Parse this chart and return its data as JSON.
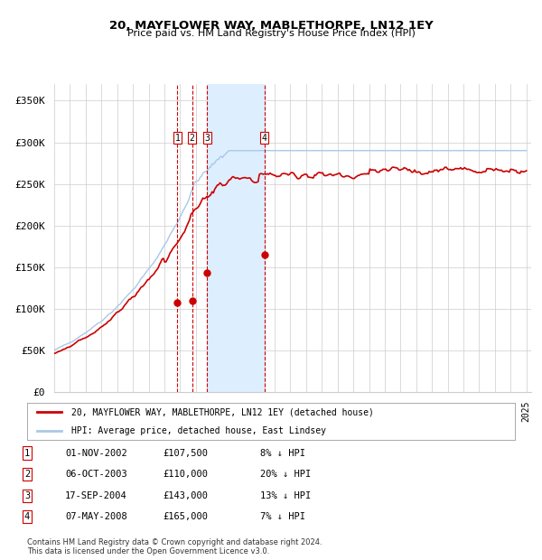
{
  "title": "20, MAYFLOWER WAY, MABLETHORPE, LN12 1EY",
  "subtitle": "Price paid vs. HM Land Registry's House Price Index (HPI)",
  "ylabel_ticks": [
    "£0",
    "£50K",
    "£100K",
    "£150K",
    "£200K",
    "£250K",
    "£300K",
    "£350K"
  ],
  "ytick_values": [
    0,
    50000,
    100000,
    150000,
    200000,
    250000,
    300000,
    350000
  ],
  "ylim": [
    0,
    370000
  ],
  "xlim_start": 1995.0,
  "xlim_end": 2025.3,
  "transactions": [
    {
      "num": 1,
      "date": "01-NOV-2002",
      "price": 107500,
      "year": 2002.83,
      "pct": "8%",
      "direction": "↓"
    },
    {
      "num": 2,
      "date": "06-OCT-2003",
      "price": 110000,
      "year": 2003.76,
      "pct": "20%",
      "direction": "↓"
    },
    {
      "num": 3,
      "date": "17-SEP-2004",
      "price": 143000,
      "year": 2004.71,
      "pct": "13%",
      "direction": "↓"
    },
    {
      "num": 4,
      "date": "07-MAY-2008",
      "price": 165000,
      "year": 2008.35,
      "pct": "7%",
      "direction": "↓"
    }
  ],
  "shaded_region": [
    2004.71,
    2008.35
  ],
  "legend_house": "20, MAYFLOWER WAY, MABLETHORPE, LN12 1EY (detached house)",
  "legend_hpi": "HPI: Average price, detached house, East Lindsey",
  "footnote": "Contains HM Land Registry data © Crown copyright and database right 2024.\nThis data is licensed under the Open Government Licence v3.0.",
  "house_color": "#cc0000",
  "hpi_color": "#aac8e8",
  "dashed_color": "#cc0000",
  "background_color": "#ffffff",
  "grid_color": "#cccccc",
  "shaded_color": "#ddeeff"
}
